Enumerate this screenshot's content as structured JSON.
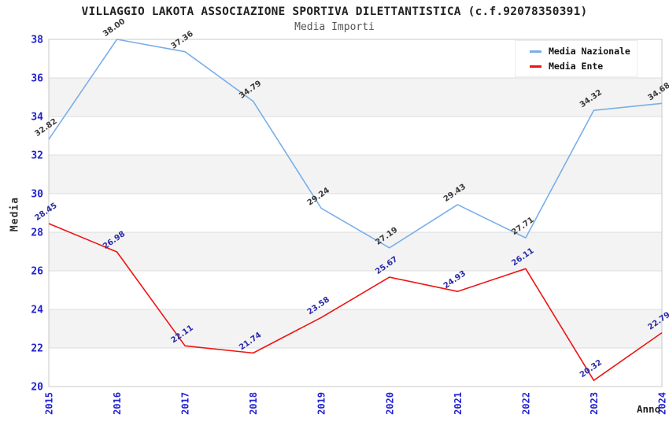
{
  "chart_data": {
    "type": "line",
    "title": "VILLAGGIO LAKOTA ASSOCIAZIONE SPORTIVA DILETTANTISTICA (c.f.92078350391)",
    "subtitle": "Media Importi",
    "xlabel": "Anno",
    "ylabel": "Media",
    "categories": [
      "2015",
      "2016",
      "2017",
      "2018",
      "2019",
      "2020",
      "2021",
      "2022",
      "2023",
      "2024"
    ],
    "series": [
      {
        "name": "Media Nazionale",
        "color": "#7aaee8",
        "label_color": "#3a3a3a",
        "values": [
          32.82,
          38.0,
          37.36,
          34.79,
          29.24,
          27.19,
          29.43,
          27.71,
          34.32,
          34.68
        ]
      },
      {
        "name": "Media Ente",
        "color": "#ee1414",
        "label_color": "#2b2ba8",
        "values": [
          28.45,
          26.98,
          22.11,
          21.74,
          23.58,
          25.67,
          24.93,
          26.11,
          20.32,
          22.79
        ]
      }
    ],
    "ylim": [
      20,
      38
    ],
    "yticks": [
      20,
      22,
      24,
      26,
      28,
      30,
      32,
      34,
      36,
      38
    ],
    "grid": "horizontal gridlines with alternating shaded bands",
    "legend_position": "top-right",
    "colors": {
      "axis_labels": "#2222d0",
      "grid": "#dcdcdc",
      "band": "#f3f3f3",
      "border": "#c9c9c9"
    }
  }
}
